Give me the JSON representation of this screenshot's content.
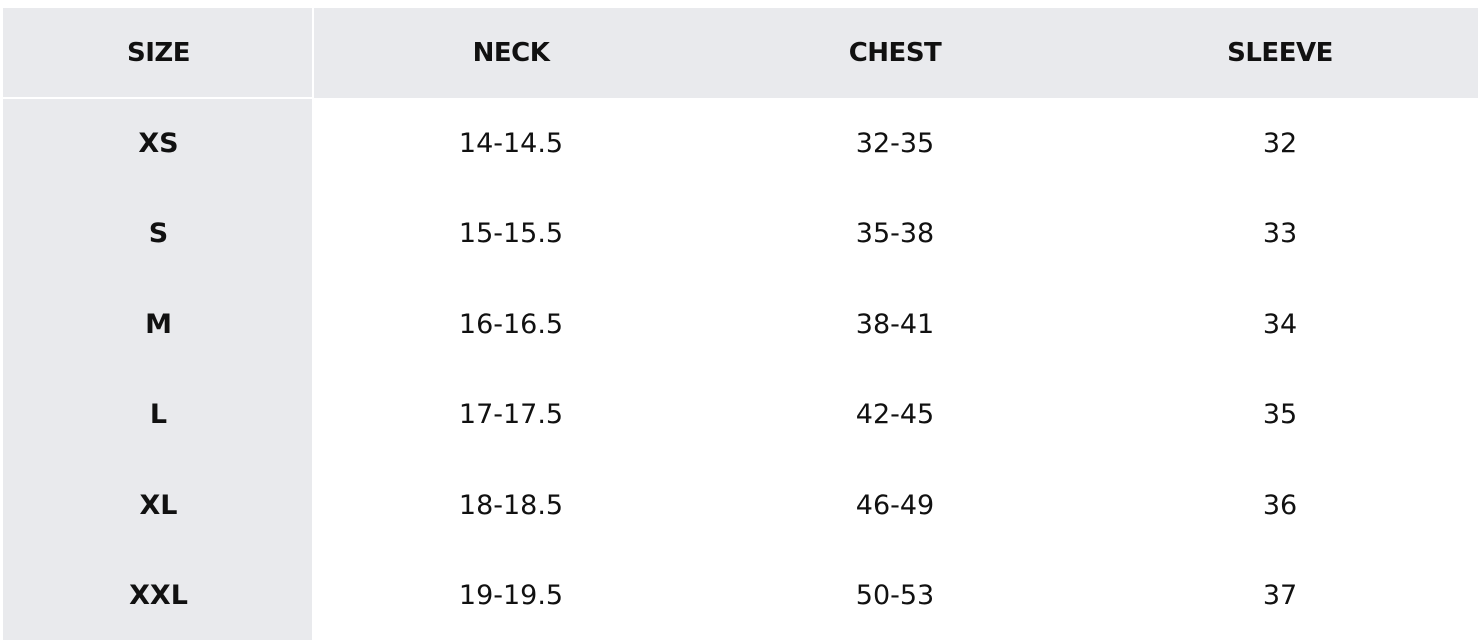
{
  "table": {
    "headers": [
      "SIZE",
      "NECK",
      "CHEST",
      "SLEEVE"
    ],
    "rows": [
      [
        "XS",
        "14-14.5",
        "32-35",
        "32"
      ],
      [
        "S",
        "15-15.5",
        "35-38",
        "33"
      ],
      [
        "M",
        "16-16.5",
        "38-41",
        "34"
      ],
      [
        "L",
        "17-17.5",
        "42-45",
        "35"
      ],
      [
        "XL",
        "18-18.5",
        "46-49",
        "36"
      ],
      [
        "XXL",
        "19-19.5",
        "50-53",
        "37"
      ]
    ]
  },
  "colors": {
    "header_bg": "#e9eaed",
    "text": "#111111"
  }
}
